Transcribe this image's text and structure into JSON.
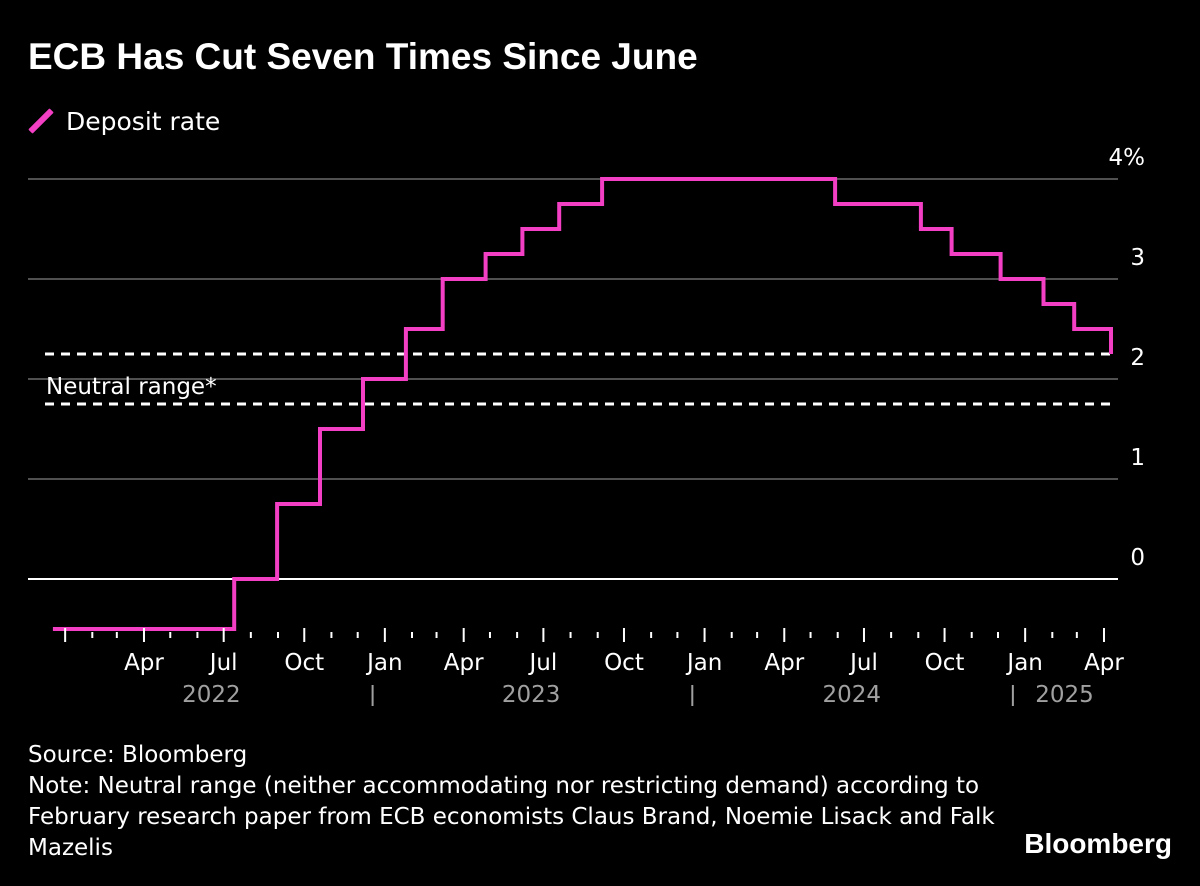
{
  "title": "ECB Has Cut Seven Times Since June",
  "legend": {
    "label": "Deposit rate",
    "color": "#f23fc4"
  },
  "chart_data": {
    "type": "line",
    "step": true,
    "series": [
      {
        "name": "Deposit rate",
        "color": "#f23fc4",
        "points": [
          [
            "2022-01-01",
            -0.5
          ],
          [
            "2022-07-27",
            -0.5
          ],
          [
            "2022-07-27",
            0.0
          ],
          [
            "2022-09-14",
            0.0
          ],
          [
            "2022-09-14",
            0.75
          ],
          [
            "2022-11-02",
            0.75
          ],
          [
            "2022-11-02",
            1.5
          ],
          [
            "2022-12-21",
            1.5
          ],
          [
            "2022-12-21",
            2.0
          ],
          [
            "2023-02-08",
            2.0
          ],
          [
            "2023-02-08",
            2.5
          ],
          [
            "2023-03-22",
            2.5
          ],
          [
            "2023-03-22",
            3.0
          ],
          [
            "2023-05-10",
            3.0
          ],
          [
            "2023-05-10",
            3.25
          ],
          [
            "2023-06-21",
            3.25
          ],
          [
            "2023-06-21",
            3.5
          ],
          [
            "2023-08-02",
            3.5
          ],
          [
            "2023-08-02",
            3.75
          ],
          [
            "2023-09-20",
            3.75
          ],
          [
            "2023-09-20",
            4.0
          ],
          [
            "2024-06-12",
            4.0
          ],
          [
            "2024-06-12",
            3.75
          ],
          [
            "2024-09-18",
            3.75
          ],
          [
            "2024-09-18",
            3.5
          ],
          [
            "2024-10-23",
            3.5
          ],
          [
            "2024-10-23",
            3.25
          ],
          [
            "2024-12-18",
            3.25
          ],
          [
            "2024-12-18",
            3.0
          ],
          [
            "2025-02-05",
            3.0
          ],
          [
            "2025-02-05",
            2.75
          ],
          [
            "2025-03-12",
            2.75
          ],
          [
            "2025-03-12",
            2.5
          ],
          [
            "2025-04-23",
            2.5
          ],
          [
            "2025-04-23",
            2.25
          ]
        ]
      }
    ],
    "neutral_range": {
      "label": "Neutral range*",
      "lower": 1.75,
      "upper": 2.25
    },
    "x_range": [
      "2021-12-23",
      "2025-05-01"
    ],
    "y_range": [
      -0.5,
      4.0
    ],
    "y_ticks": [
      {
        "value": 4,
        "label": "4%"
      },
      {
        "value": 3,
        "label": "3"
      },
      {
        "value": 2,
        "label": "2"
      },
      {
        "value": 1,
        "label": "1"
      },
      {
        "value": 0,
        "label": "0"
      }
    ],
    "x_month_labels": [
      {
        "date": "2022-04-15",
        "label": "Apr"
      },
      {
        "date": "2022-07-15",
        "label": "Jul"
      },
      {
        "date": "2022-10-15",
        "label": "Oct"
      },
      {
        "date": "2023-01-15",
        "label": "Jan"
      },
      {
        "date": "2023-04-15",
        "label": "Apr"
      },
      {
        "date": "2023-07-15",
        "label": "Jul"
      },
      {
        "date": "2023-10-15",
        "label": "Oct"
      },
      {
        "date": "2024-01-15",
        "label": "Jan"
      },
      {
        "date": "2024-04-15",
        "label": "Apr"
      },
      {
        "date": "2024-07-15",
        "label": "Jul"
      },
      {
        "date": "2024-10-15",
        "label": "Oct"
      },
      {
        "date": "2025-01-15",
        "label": "Jan"
      },
      {
        "date": "2025-04-15",
        "label": "Apr"
      }
    ],
    "x_year_labels": [
      {
        "date": "2022-07-01",
        "label": "2022"
      },
      {
        "date": "2023-07-01",
        "label": "2023"
      },
      {
        "date": "2024-07-01",
        "label": "2024"
      },
      {
        "date": "2025-03-01",
        "label": "2025"
      }
    ],
    "x_year_separators": [
      "2023-01-01",
      "2024-01-01",
      "2025-01-01"
    ],
    "grid": true
  },
  "footer": {
    "source": "Source: Bloomberg",
    "note": "Note: Neutral range (neither accommodating nor restricting demand) according to February research paper from ECB economists Claus Brand, Noemie Lisack and Falk Mazelis"
  },
  "brand": "Bloomberg"
}
